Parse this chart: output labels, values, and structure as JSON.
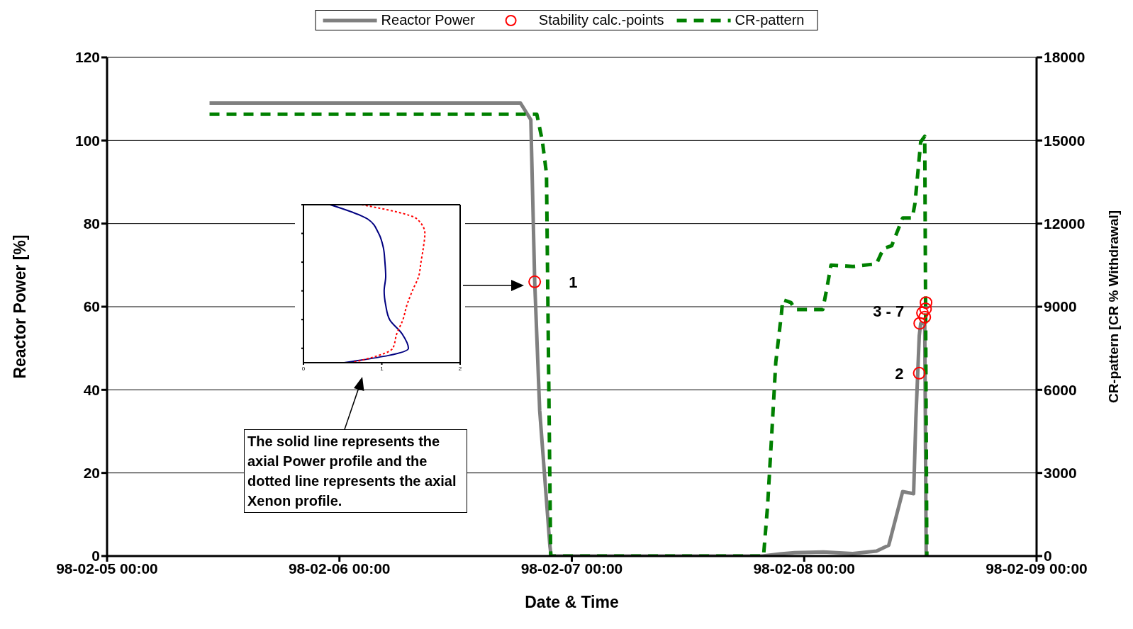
{
  "chart_data": [
    {
      "type": "line",
      "xlabel": "Date & Time",
      "ylabel": "Reactor Power [%]",
      "y2label": "CR-pattern [CR % Withdrawal]",
      "xlim": [
        "--02-05T00:00",
        "--02-09T00:00"
      ],
      "xticks": [
        {
          "value": "--02-05T00:00",
          "label": "98-02-05 00:00"
        },
        {
          "value": "--02-06T00:00",
          "label": "98-02-06 00:00"
        },
        {
          "value": "--02-07T00:00",
          "label": "98-02-07 00:00"
        },
        {
          "value": "--02-08T00:00",
          "label": "98-02-08 00:00"
        },
        {
          "value": "--02-09T00:00",
          "label": "98-02-09 00:00"
        }
      ],
      "ylim": [
        0,
        120
      ],
      "yticks": [
        0,
        20,
        40,
        60,
        80,
        100,
        120
      ],
      "y2lim": [
        0,
        18000
      ],
      "y2ticks": [
        0,
        3000,
        6000,
        9000,
        12000,
        15000,
        18000
      ],
      "grid": "y",
      "legend": "top",
      "series": [
        {
          "name": "Reactor Power",
          "type": "line",
          "color": "#808080",
          "marker": "none",
          "line_style": "solid",
          "x": [
            "--02-05T10:35",
            "--02-05T20:00",
            "--02-06T03:00",
            "--02-06T07:00",
            "--02-06T12:00",
            "--02-06T18:42",
            "--02-06T19:46",
            "--02-06T20:10",
            "--02-06T20:41",
            "--02-06T21:44",
            "--02-06T21:52",
            "--02-07T19:40",
            "--02-07T21:30",
            "--02-07T23:00",
            "--02-08T02:00",
            "--02-08T05:00",
            "--02-08T07:28",
            "--02-08T08:44",
            "--02-08T10:10",
            "--02-08T11:18",
            "--02-08T11:32",
            "--02-08T11:53",
            "--02-08T12:02",
            "--02-08T12:27",
            "--02-08T12:36"
          ],
          "values": [
            109,
            109,
            109,
            109,
            109,
            109,
            105,
            66,
            35,
            2.5,
            0,
            0,
            0.5,
            0.8,
            1,
            0.6,
            1.2,
            2.6,
            15.5,
            15,
            33,
            53,
            56,
            56,
            0
          ]
        },
        {
          "name": "Stability calc.-points",
          "type": "scatter",
          "color": "#ff0000",
          "marker": "circle",
          "x": [
            "--02-06T20:10",
            "--02-08T11:53",
            "--02-08T11:56",
            "--02-08T12:13",
            "--02-08T12:27",
            "--02-08T12:32",
            "--02-08T12:35"
          ],
          "values": [
            66,
            44,
            56,
            58.5,
            57.5,
            59.5,
            61
          ]
        },
        {
          "name": "CR-pattern",
          "type": "line",
          "axis": "y2",
          "color": "#008000",
          "marker": "none",
          "line_style": "dashed",
          "x": [
            "--02-05T10:35",
            "--02-06T20:23",
            "--02-06T20:57",
            "--02-06T21:23",
            "--02-06T21:49",
            "--02-07T19:48",
            "--02-07T20:13",
            "--02-07T20:38",
            "--02-07T21:04",
            "--02-07T21:39",
            "--02-07T21:47",
            "--02-07T22:38",
            "--02-07T23:04",
            "--02-08T01:55",
            "--02-08T02:20",
            "--02-08T02:46",
            "--02-08T05:02",
            "--02-08T07:28",
            "--02-08T08:11",
            "--02-08T09:02",
            "--02-08T10:10",
            "--02-08T11:10",
            "--02-08T11:27",
            "--02-08T12:02",
            "--02-08T12:27",
            "--02-08T12:40"
          ],
          "values": [
            15950,
            15950,
            15000,
            13800,
            0,
            0,
            1800,
            4300,
            7000,
            8750,
            9250,
            9150,
            8900,
            8900,
            9650,
            10500,
            10450,
            10550,
            11100,
            11200,
            12200,
            12200,
            12750,
            14950,
            15150,
            0
          ]
        }
      ],
      "annotations": [
        {
          "text": "1",
          "x": "--02-06T20:10",
          "y": 66
        },
        {
          "text": "2",
          "x": "--02-08T11:53",
          "y": 44
        },
        {
          "text": "3 - 7",
          "x": "--02-08T11:56",
          "y": 59
        },
        "The solid line represents the axial Power profile and the dotted line represents the axial Xenon profile."
      ]
    },
    {
      "type": "line",
      "orientation": "horizontal",
      "categories": [
        null,
        null,
        null,
        null,
        null,
        null,
        null,
        null,
        null,
        null,
        null,
        null
      ],
      "xlim": [
        0,
        2
      ],
      "xticks": [
        0,
        1,
        2
      ],
      "tick_labels": "x",
      "series": [
        {
          "color": "#000080",
          "line_style": "solid",
          "values": [
            0.34,
            0.82,
            0.96,
            1.02,
            1.04,
            1.05,
            1.03,
            1.05,
            1.1,
            1.26,
            1.34,
            0.52
          ]
        },
        {
          "color": "#ff0000",
          "line_style": "dotted",
          "values": [
            0.74,
            1.45,
            1.55,
            1.53,
            1.5,
            1.47,
            1.39,
            1.32,
            1.27,
            1.19,
            1.14,
            0.62
          ]
        }
      ]
    }
  ]
}
